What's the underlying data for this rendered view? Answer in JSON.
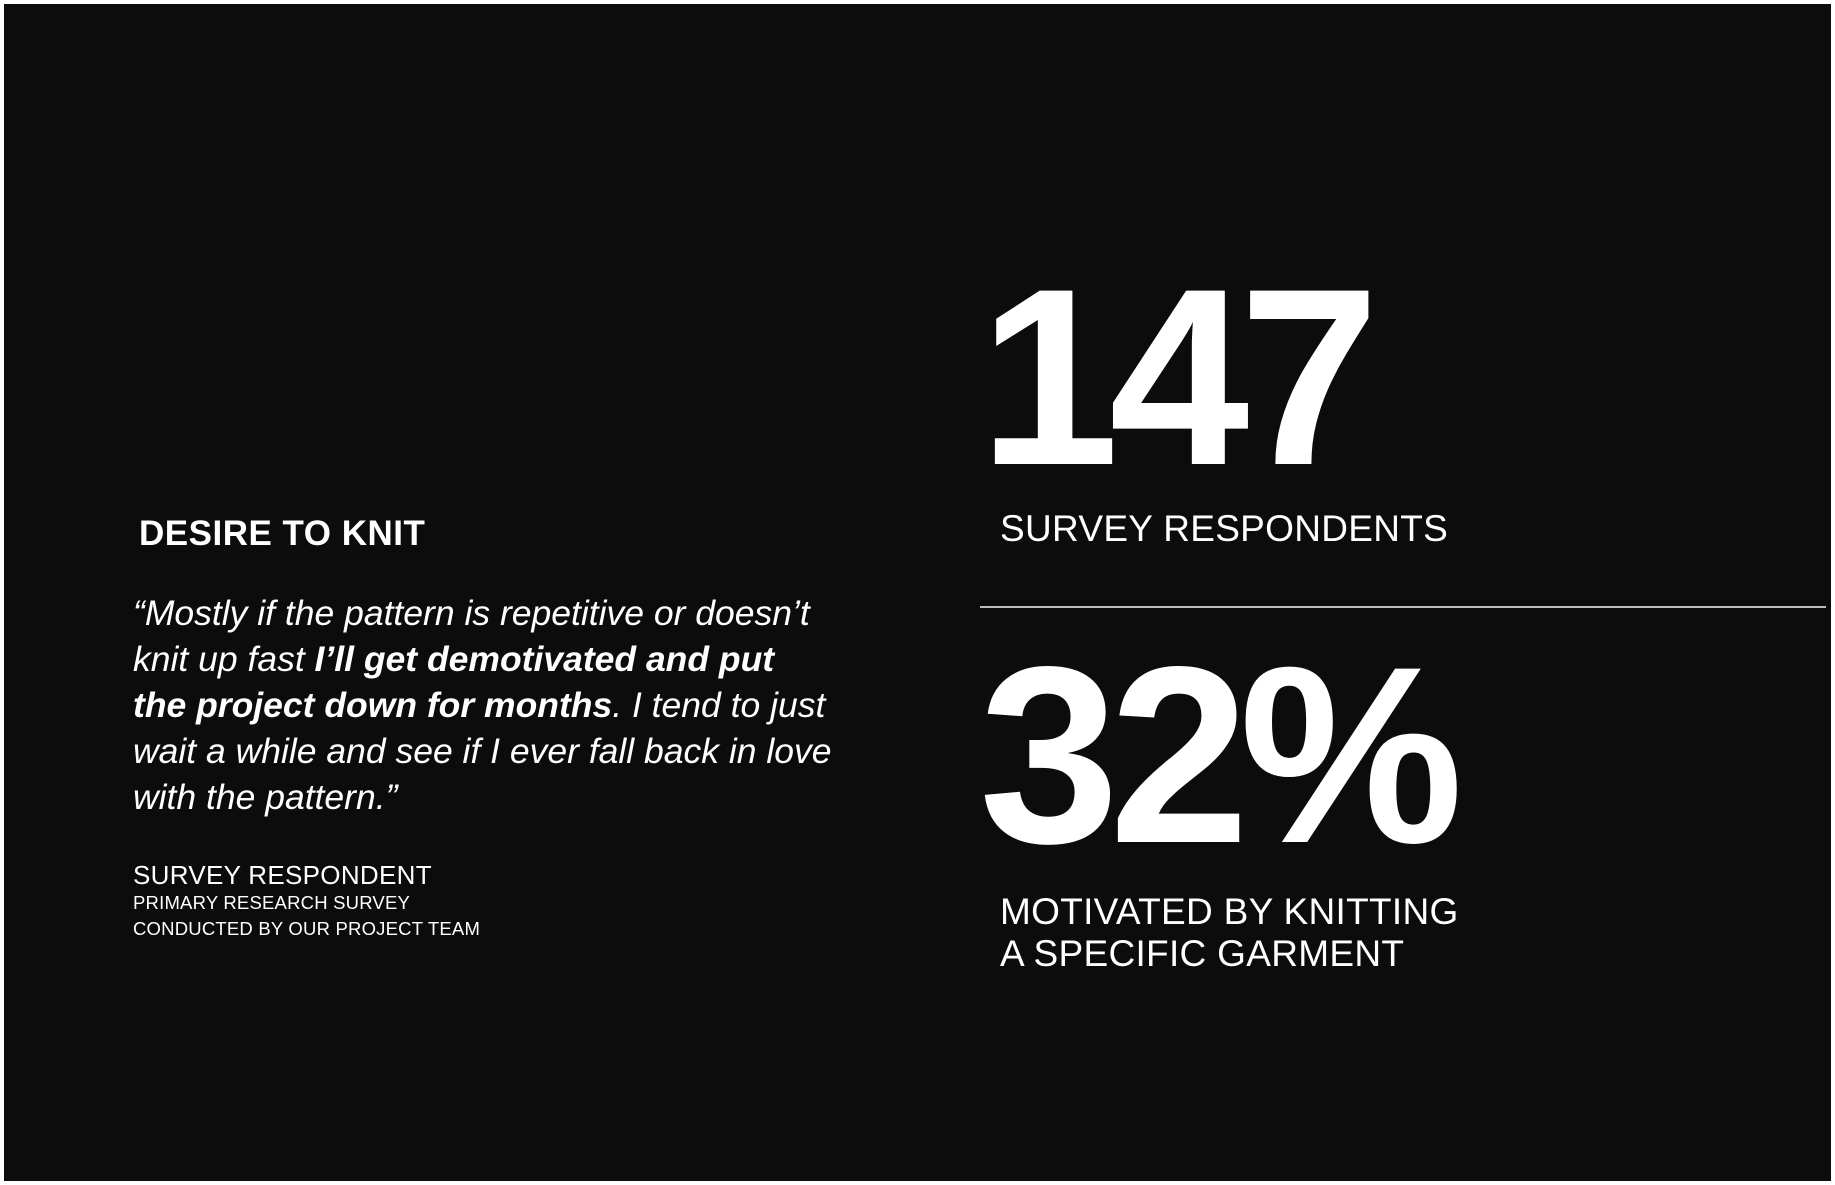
{
  "left": {
    "heading": "DESIRE TO KNIT",
    "quote": {
      "part1": "“Mostly if the pattern is repetitive or doesn’t knit up fast ",
      "emphasis": "I’ll get demotivated and put the project down for months",
      "part2": ". I tend to just wait a while and see if I ever fall back in love with the pattern.”"
    },
    "attribution": {
      "name": "SURVEY RESPONDENT",
      "line1": "PRIMARY RESEARCH SURVEY",
      "line2": "CONDUCTED BY OUR PROJECT TEAM"
    }
  },
  "stats": [
    {
      "value": "147",
      "label_line1": "SURVEY RESPONDENTS",
      "label_line2": ""
    },
    {
      "value": "32%",
      "label_line1": "MOTIVATED BY KNITTING",
      "label_line2": "A SPECIFIC GARMENT"
    }
  ],
  "colors": {
    "background": "#0c0c0c",
    "text": "#ffffff",
    "divider": "#bcbcbc",
    "border": "#ffffff"
  }
}
